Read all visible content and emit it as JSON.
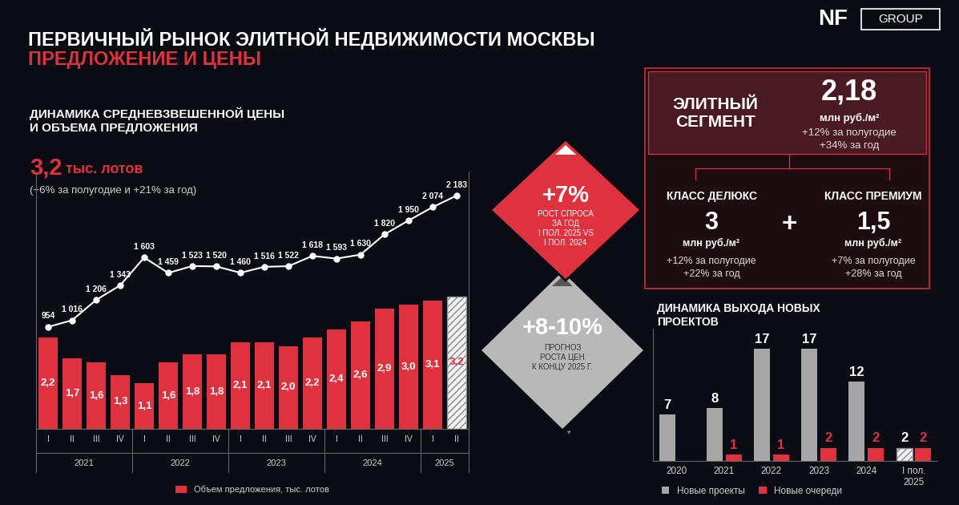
{
  "header": {
    "title": "ПЕРВИЧНЫЙ РЫНОК ЭЛИТНОЙ НЕДВИЖИМОСТИ МОСКВЫ",
    "subtitle": "ПРЕДЛОЖЕНИЕ И ЦЕНЫ",
    "logo": "NF",
    "logo_label": "GROUP"
  },
  "chart_data": [
    {
      "type": "bar",
      "title": "ДИНАМИКА СРЕДНЕВЗВЕШЕННОЙ ЦЕНЫ\nИ ОБЪЕМА ПРЕДЛОЖЕНИЯ",
      "headline": {
        "value": "3,2",
        "unit": "тыс. лотов",
        "note": "(+6% за полугодие и +21% за год)"
      },
      "categories": [
        "I",
        "II",
        "III",
        "IV",
        "I",
        "II",
        "III",
        "IV",
        "I",
        "II",
        "III",
        "IV",
        "I",
        "II",
        "III",
        "IV",
        "I",
        "II"
      ],
      "category_groups": [
        "2021",
        "2021",
        "2021",
        "2021",
        "2022",
        "2022",
        "2022",
        "2022",
        "2023",
        "2023",
        "2023",
        "2023",
        "2024",
        "2024",
        "2024",
        "2024",
        "2025",
        "2025"
      ],
      "ylim": [
        0,
        6.2
      ],
      "y2lim": [
        0,
        2400
      ],
      "tick_labels": "x",
      "data_labels": true,
      "legend": "upper center",
      "series": [
        {
          "name": "Объем предложения, тыс. лотов",
          "type": "bar",
          "color": "#e0313f",
          "values": [
            2.2,
            1.7,
            1.6,
            1.3,
            1.1,
            1.6,
            1.8,
            1.8,
            2.1,
            2.1,
            2.0,
            2.2,
            2.4,
            2.6,
            2.9,
            3.0,
            3.1,
            3.2
          ],
          "value_labels": [
            "2,2",
            "1,7",
            "1,6",
            "1,3",
            "1,1",
            "1,6",
            "1,8",
            "1,8",
            "2,1",
            "2,1",
            "2,0",
            "2,2",
            "2,4",
            "2,6",
            "2,9",
            "3,0",
            "3,1",
            "3,2"
          ]
        },
        {
          "type": "line",
          "axis": "y2",
          "color": "#ffffff",
          "marker": "o",
          "values": [
            954,
            1016,
            1206,
            1343,
            1603,
            1459,
            1523,
            1520,
            1460,
            1516,
            1522,
            1618,
            1593,
            1630,
            1820,
            1950,
            2074,
            2183
          ],
          "value_labels": [
            "954",
            "1 016",
            "1 206",
            "1 343",
            "1 603",
            "1 459",
            "1 523",
            "1 520",
            "1 460",
            "1 516",
            "1 522",
            "1 618",
            "1 593",
            "1 630",
            "1 820",
            "1 950",
            "2 074",
            "2 183"
          ]
        }
      ]
    },
    {
      "type": "bar",
      "title": "ДИНАМИКА ВЫХОДА НОВЫХ\nПРОЕКТОВ",
      "categories": [
        "2020",
        "2021",
        "2022",
        "2023",
        "2024",
        "I пол.\n2025"
      ],
      "ylim": [
        0,
        20
      ],
      "tick_labels": "x",
      "data_labels": true,
      "legend": "upper left",
      "series": [
        {
          "name": "Новые проекты",
          "color": "#a6a6a6",
          "values": [
            7,
            8,
            17,
            17,
            12,
            2
          ]
        },
        {
          "name": "Новые очереди",
          "color": "#e0313f",
          "values": [
            null,
            1,
            1,
            2,
            2,
            2
          ]
        }
      ]
    }
  ],
  "callouts": [
    {
      "value": "+7%",
      "text": "РОСТ СПРОСА\nЗА ГОД\nI ПОЛ. 2025 VS\nI ПОЛ. 2024"
    },
    {
      "value": "+8-10%",
      "text": "ПРОГНОЗ\nРОСТА ЦЕН\nК КОНЦУ 2025 Г."
    }
  ],
  "segment_box": {
    "title": "ЭЛИТНЫЙ\nСЕГМЕНТ",
    "value": "2,18",
    "unit": "млн руб./м²",
    "changes": [
      "+12% за полугодие",
      "+34% за год"
    ],
    "operator": "+",
    "classes": [
      {
        "title": "КЛАСС ДЕЛЮКС",
        "value": "3",
        "unit": "млн руб./м²",
        "changes": [
          "+12% за полугодие",
          "+22% за год"
        ]
      },
      {
        "title": "КЛАСС ПРЕМИУМ",
        "value": "1,5",
        "unit": "млн руб./м²",
        "changes": [
          "+7% за полугодие",
          "+28% за год"
        ]
      }
    ]
  },
  "footnote": "*"
}
